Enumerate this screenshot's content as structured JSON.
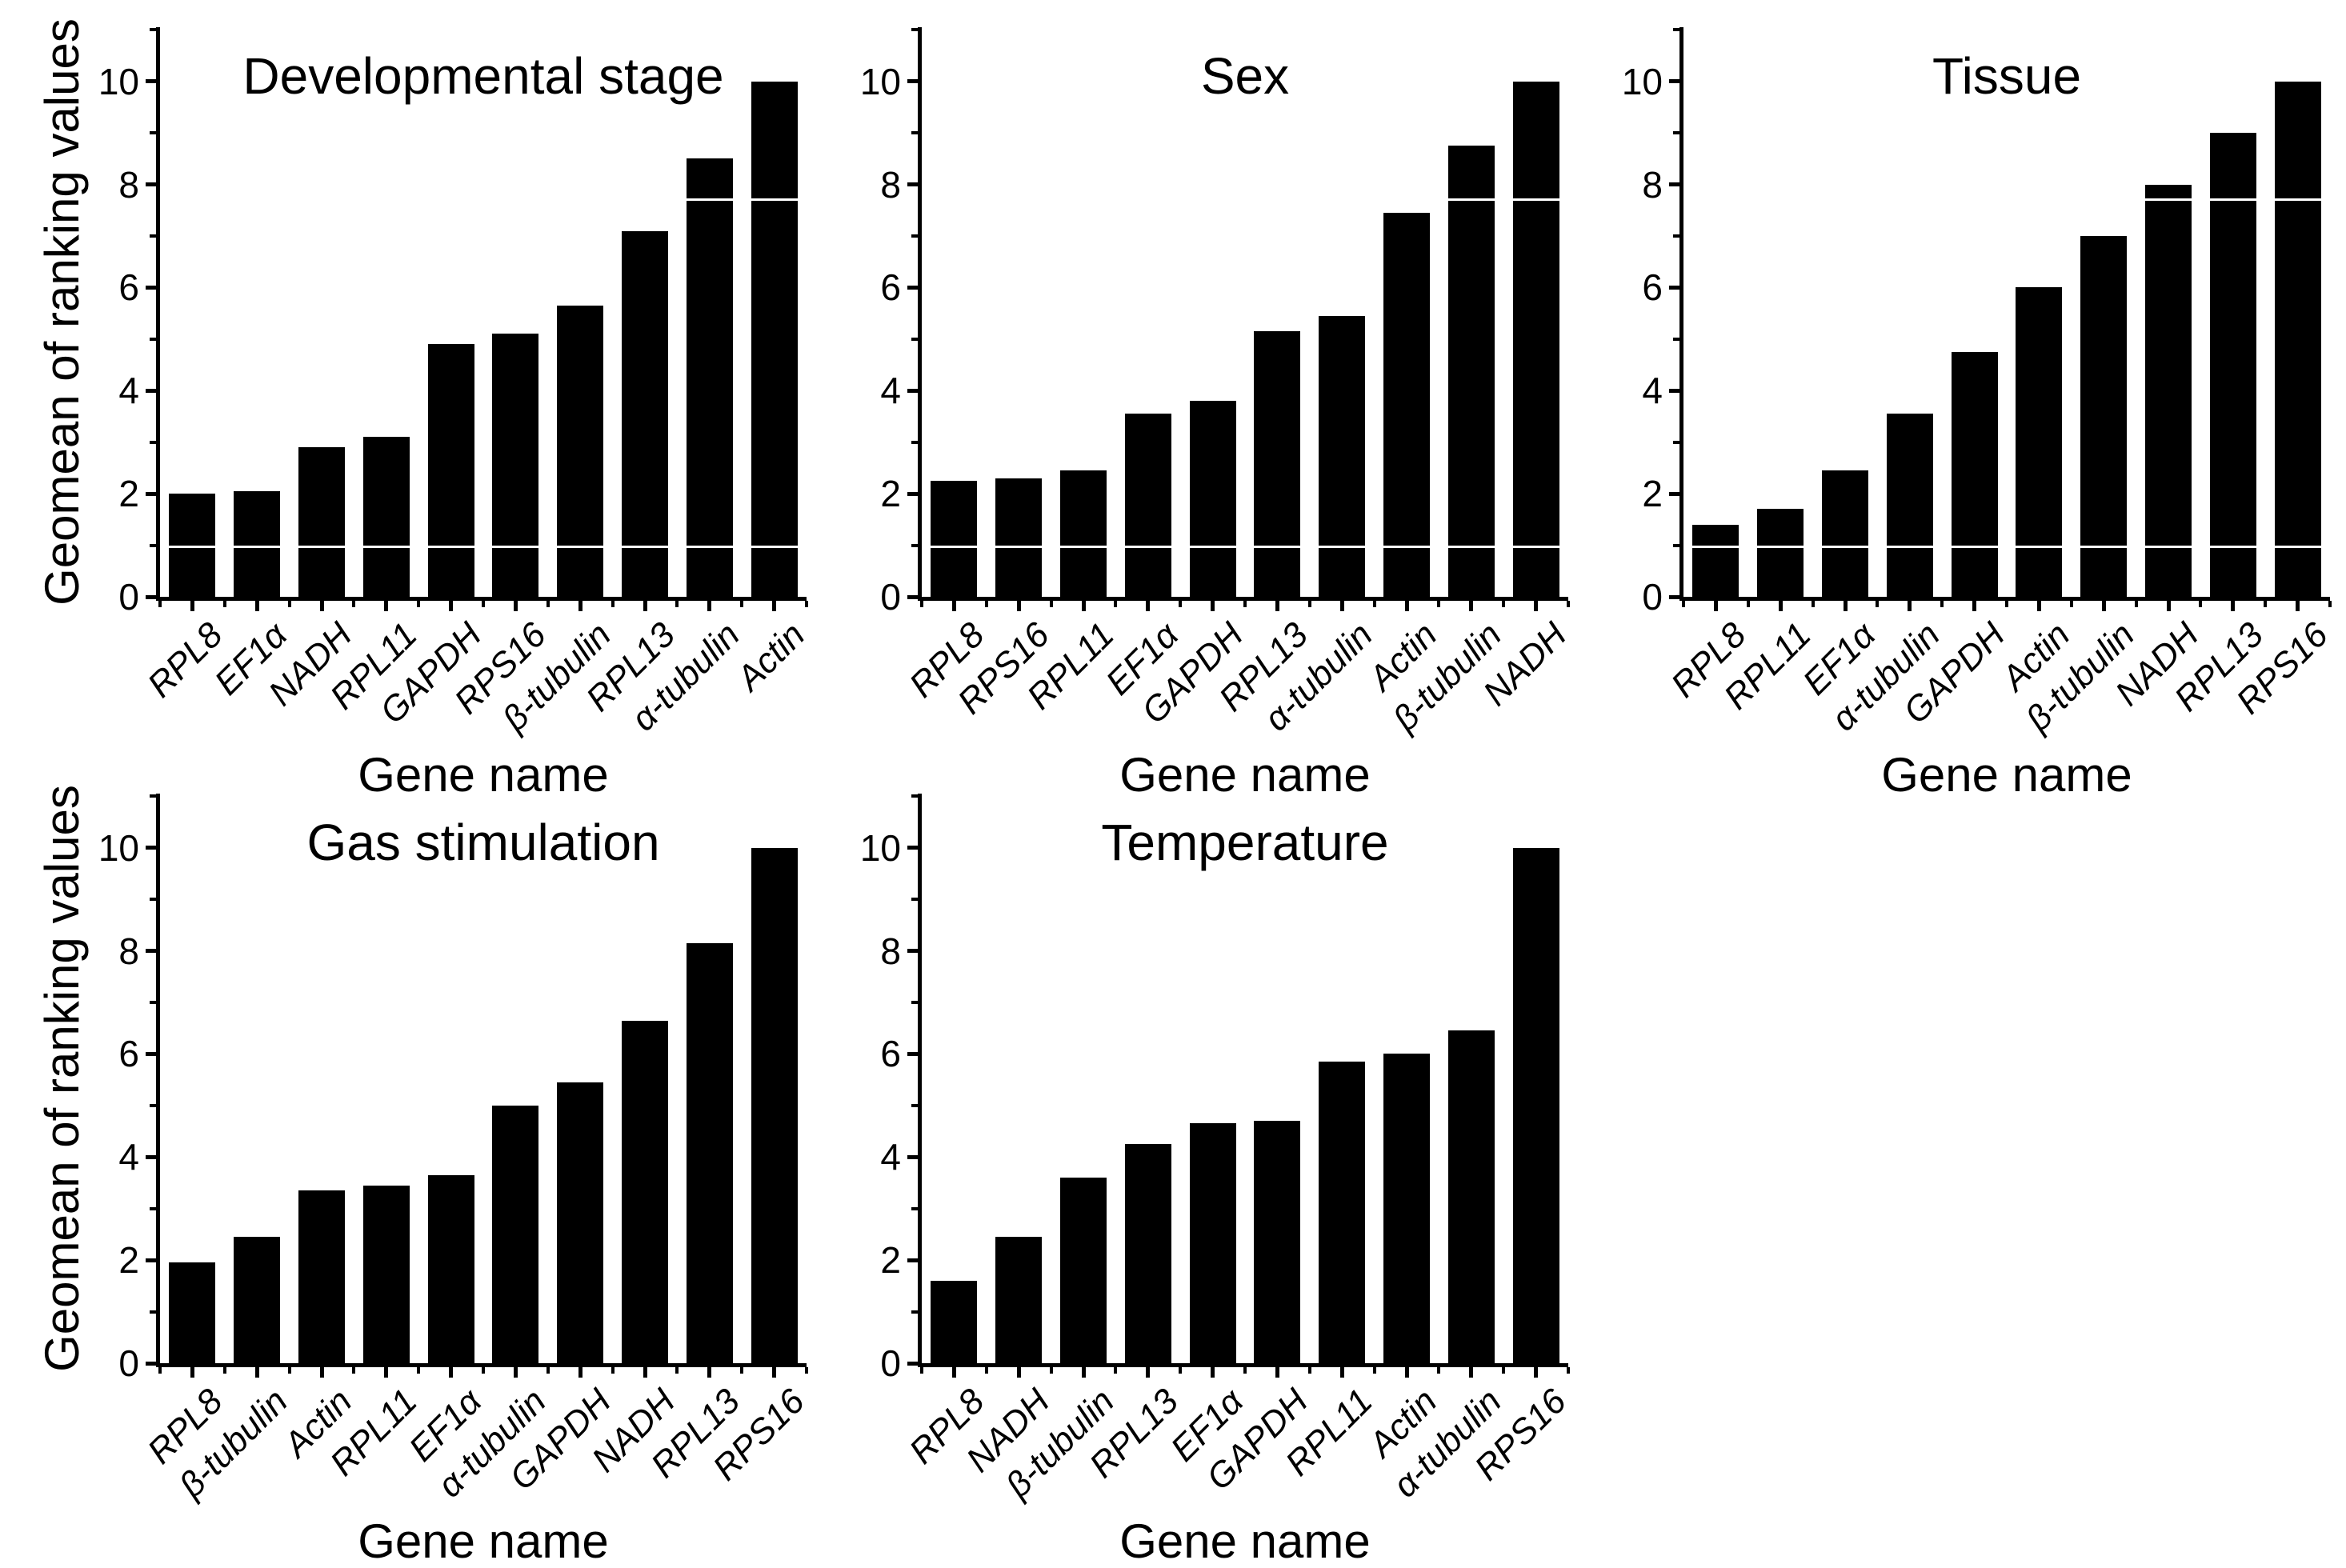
{
  "figure": {
    "background": "#ffffff",
    "bar_color": "#000000",
    "axis_color": "#000000",
    "artifact_line_color": "#ffffff",
    "y_axis_title": "Geomean of ranking values",
    "x_axis_title": "Gene name"
  },
  "chart_data": [
    {
      "type": "bar",
      "title": "Developmental stage",
      "xlabel": "Gene name",
      "ylabel": "Geomean of ranking values",
      "ylim": [
        0,
        11
      ],
      "yticks": [
        0,
        2,
        4,
        6,
        8,
        10
      ],
      "grid": false,
      "legend": null,
      "bar_color": "#000000",
      "categories": [
        "RPL8",
        "EF1α",
        "NADH",
        "RPL11",
        "GAPDH",
        "RPS16",
        "β-tubulin",
        "RPL13",
        "α-tubulin",
        "Actin"
      ],
      "values": [
        2.0,
        2.05,
        2.9,
        3.1,
        4.9,
        5.1,
        5.65,
        7.1,
        8.5,
        10.0
      ],
      "stitch_artifact_lines": [
        0.97,
        7.7
      ]
    },
    {
      "type": "bar",
      "title": "Sex",
      "xlabel": "Gene name",
      "ylabel": "Geomean of ranking values",
      "ylim": [
        0,
        11
      ],
      "yticks": [
        0,
        2,
        4,
        6,
        8,
        10
      ],
      "grid": false,
      "legend": null,
      "bar_color": "#000000",
      "categories": [
        "RPL8",
        "RPS16",
        "RPL11",
        "EF1α",
        "GAPDH",
        "RPL13",
        "α-tubulin",
        "Actin",
        "β-tubulin",
        "NADH"
      ],
      "values": [
        2.25,
        2.3,
        2.45,
        3.55,
        3.8,
        5.15,
        5.45,
        7.45,
        8.75,
        10.0
      ],
      "stitch_artifact_lines": [
        0.97,
        7.7
      ]
    },
    {
      "type": "bar",
      "title": "Tissue",
      "xlabel": "Gene name",
      "ylabel": "Geomean of ranking values",
      "ylim": [
        0,
        11
      ],
      "yticks": [
        0,
        2,
        4,
        6,
        8,
        10
      ],
      "grid": false,
      "legend": null,
      "bar_color": "#000000",
      "categories": [
        "RPL8",
        "RPL11",
        "EF1α",
        "α-tubulin",
        "GAPDH",
        "Actin",
        "β-tubulin",
        "NADH",
        "RPL13",
        "RPS16"
      ],
      "values": [
        1.4,
        1.7,
        2.45,
        3.55,
        4.75,
        6.0,
        7.0,
        8.0,
        9.0,
        10.0
      ],
      "stitch_artifact_lines": [
        0.97,
        7.7
      ]
    },
    {
      "type": "bar",
      "title": "Gas stimulation",
      "xlabel": "Gene name",
      "ylabel": "Geomean of ranking values",
      "ylim": [
        0,
        11
      ],
      "yticks": [
        0,
        2,
        4,
        6,
        8,
        10
      ],
      "grid": false,
      "legend": null,
      "bar_color": "#000000",
      "categories": [
        "RPL8",
        "β-tubulin",
        "Actin",
        "RPL11",
        "EF1α",
        "α-tubulin",
        "GAPDH",
        "NADH",
        "RPL13",
        "RPS16"
      ],
      "values": [
        1.95,
        2.45,
        3.35,
        3.45,
        3.65,
        5.0,
        5.45,
        6.65,
        8.15,
        10.0
      ],
      "stitch_artifact_lines": []
    },
    {
      "type": "bar",
      "title": "Temperature",
      "xlabel": "Gene name",
      "ylabel": "Geomean of ranking values",
      "ylim": [
        0,
        11
      ],
      "yticks": [
        0,
        2,
        4,
        6,
        8,
        10
      ],
      "grid": false,
      "legend": null,
      "bar_color": "#000000",
      "categories": [
        "RPL8",
        "NADH",
        "β-tubulin",
        "RPL13",
        "EF1α",
        "GAPDH",
        "RPL11",
        "Actin",
        "α-tubulin",
        "RPS16"
      ],
      "values": [
        1.6,
        2.45,
        3.6,
        4.25,
        4.65,
        4.7,
        5.85,
        6.0,
        6.45,
        10.0
      ],
      "stitch_artifact_lines": []
    }
  ]
}
